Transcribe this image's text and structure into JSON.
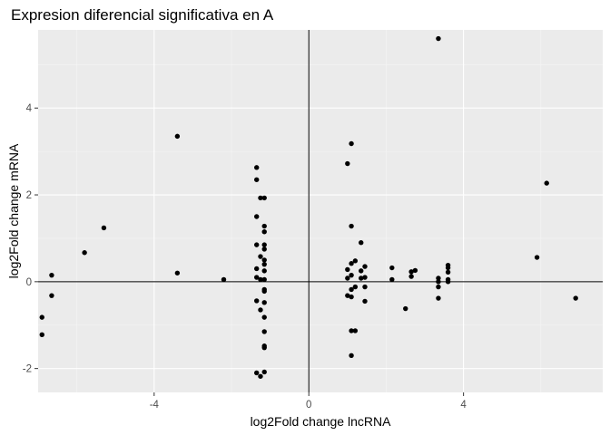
{
  "chart_data": {
    "type": "scatter",
    "title": "Expresion diferencial significativa en A",
    "xlabel": "log2Fold change lncRNA",
    "ylabel": "log2Fold change mRNA",
    "xlim": [
      -7.0,
      7.6
    ],
    "ylim": [
      -2.55,
      5.8
    ],
    "x_ticks": [
      -4,
      0,
      4
    ],
    "y_ticks": [
      -2,
      0,
      2,
      4
    ],
    "grid": true,
    "reference_lines": {
      "x": 0,
      "y": 0
    },
    "colors": {
      "panel": "#ebebeb",
      "grid_major": "#ffffff",
      "grid_minor": "#f5f5f5",
      "point": "#000000",
      "axis_text": "#4d4d4d"
    },
    "points": [
      [
        -6.9,
        -0.82
      ],
      [
        -6.9,
        -1.22
      ],
      [
        -6.65,
        0.15
      ],
      [
        -6.65,
        -0.32
      ],
      [
        -5.8,
        0.67
      ],
      [
        -5.3,
        1.24
      ],
      [
        -3.4,
        3.35
      ],
      [
        -3.4,
        0.2
      ],
      [
        -2.2,
        0.05
      ],
      [
        -1.35,
        2.63
      ],
      [
        -1.35,
        2.35
      ],
      [
        -1.35,
        1.5
      ],
      [
        -1.35,
        0.85
      ],
      [
        -1.35,
        0.3
      ],
      [
        -1.35,
        0.1
      ],
      [
        -1.35,
        -0.44
      ],
      [
        -1.35,
        -2.1
      ],
      [
        -1.25,
        1.93
      ],
      [
        -1.25,
        0.58
      ],
      [
        -1.25,
        0.05
      ],
      [
        -1.25,
        -0.65
      ],
      [
        -1.25,
        -2.18
      ],
      [
        -1.15,
        1.93
      ],
      [
        -1.15,
        1.28
      ],
      [
        -1.15,
        1.15
      ],
      [
        -1.15,
        0.85
      ],
      [
        -1.15,
        0.75
      ],
      [
        -1.15,
        0.5
      ],
      [
        -1.15,
        0.4
      ],
      [
        -1.15,
        0.25
      ],
      [
        -1.15,
        0.05
      ],
      [
        -1.15,
        -0.18
      ],
      [
        -1.15,
        -0.22
      ],
      [
        -1.15,
        -0.48
      ],
      [
        -1.15,
        -0.82
      ],
      [
        -1.15,
        -1.15
      ],
      [
        -1.15,
        -1.48
      ],
      [
        -1.15,
        -1.52
      ],
      [
        -1.15,
        -2.08
      ],
      [
        1.0,
        2.72
      ],
      [
        1.0,
        0.28
      ],
      [
        1.0,
        0.08
      ],
      [
        1.0,
        -0.32
      ],
      [
        1.1,
        3.18
      ],
      [
        1.1,
        1.28
      ],
      [
        1.1,
        0.42
      ],
      [
        1.1,
        0.15
      ],
      [
        1.1,
        -0.18
      ],
      [
        1.1,
        -0.35
      ],
      [
        1.1,
        -1.13
      ],
      [
        1.1,
        -1.7
      ],
      [
        1.2,
        0.48
      ],
      [
        1.2,
        -0.12
      ],
      [
        1.2,
        -1.13
      ],
      [
        1.35,
        0.9
      ],
      [
        1.35,
        0.25
      ],
      [
        1.35,
        0.08
      ],
      [
        1.45,
        0.35
      ],
      [
        1.45,
        0.1
      ],
      [
        1.45,
        -0.12
      ],
      [
        1.45,
        -0.45
      ],
      [
        2.15,
        0.32
      ],
      [
        2.15,
        0.05
      ],
      [
        2.5,
        -0.62
      ],
      [
        2.65,
        0.23
      ],
      [
        2.65,
        0.12
      ],
      [
        2.75,
        0.26
      ],
      [
        3.35,
        5.6
      ],
      [
        3.35,
        0.08
      ],
      [
        3.35,
        0.0
      ],
      [
        3.35,
        -0.12
      ],
      [
        3.35,
        -0.38
      ],
      [
        3.6,
        0.38
      ],
      [
        3.6,
        0.32
      ],
      [
        3.6,
        0.22
      ],
      [
        3.6,
        0.05
      ],
      [
        3.6,
        0.0
      ],
      [
        5.9,
        0.56
      ],
      [
        6.15,
        2.27
      ],
      [
        6.9,
        -0.38
      ]
    ]
  }
}
